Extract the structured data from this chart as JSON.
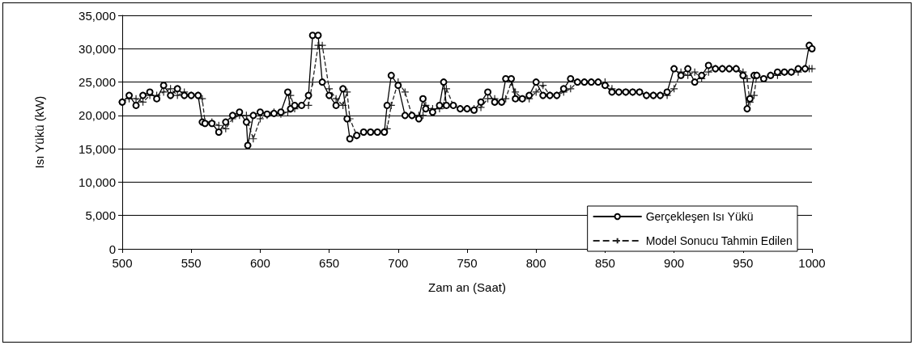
{
  "chart_data": {
    "type": "line",
    "xlabel": "Zam an (Saat)",
    "ylabel": "Isı Yükü (kW)",
    "x": [
      500,
      505,
      510,
      515,
      520,
      525,
      530,
      535,
      540,
      545,
      550,
      555,
      558,
      560,
      565,
      570,
      575,
      580,
      585,
      590,
      591,
      595,
      600,
      605,
      610,
      615,
      620,
      622,
      625,
      630,
      635,
      638,
      642,
      645,
      650,
      655,
      660,
      663,
      665,
      670,
      675,
      680,
      685,
      690,
      692,
      695,
      700,
      705,
      710,
      715,
      718,
      720,
      725,
      730,
      733,
      735,
      740,
      745,
      750,
      755,
      760,
      765,
      770,
      775,
      778,
      782,
      785,
      790,
      795,
      800,
      805,
      810,
      815,
      820,
      825,
      830,
      835,
      840,
      845,
      850,
      855,
      860,
      865,
      870,
      875,
      880,
      885,
      890,
      895,
      900,
      905,
      910,
      915,
      920,
      925,
      930,
      935,
      940,
      945,
      950,
      953,
      955,
      958,
      960,
      965,
      970,
      975,
      980,
      985,
      990,
      995,
      998,
      1000
    ],
    "series": [
      {
        "name": "Gerçekleşen Isı Yükü",
        "color": "#000000",
        "marker": "circle",
        "line_style": "solid",
        "values": [
          22000,
          23000,
          21500,
          23000,
          23500,
          22500,
          24500,
          23000,
          24000,
          23000,
          23000,
          23000,
          19000,
          18800,
          18800,
          17500,
          19000,
          20000,
          20500,
          19000,
          15500,
          20000,
          20500,
          20200,
          20300,
          20500,
          23500,
          21000,
          21500,
          21500,
          23000,
          32000,
          32000,
          25000,
          23000,
          21500,
          24000,
          19500,
          16500,
          17000,
          17500,
          17500,
          17500,
          17500,
          21500,
          26000,
          24500,
          20000,
          20000,
          19500,
          22500,
          21000,
          20500,
          21500,
          25000,
          21500,
          21500,
          21000,
          21000,
          20800,
          22000,
          23500,
          22000,
          22000,
          25500,
          25500,
          22500,
          22500,
          23000,
          25000,
          23000,
          23000,
          23000,
          24000,
          25500,
          25000,
          25000,
          25000,
          25000,
          24500,
          23500,
          23500,
          23500,
          23500,
          23500,
          23000,
          23000,
          23000,
          23500,
          27000,
          26000,
          27000,
          25000,
          26000,
          27500,
          27000,
          27000,
          27000,
          27000,
          26000,
          21000,
          22500,
          26000,
          26000,
          25500,
          26000,
          26500,
          26500,
          26500,
          27000,
          27000,
          30500,
          30000
        ]
      },
      {
        "name": "Model Sonucu Tahmin Edilen",
        "color": "#222222",
        "marker": "cross",
        "line_style": "dashed",
        "values": [
          22000,
          22500,
          22500,
          22000,
          23000,
          23000,
          23500,
          24000,
          23000,
          23500,
          23000,
          23000,
          22500,
          19000,
          19000,
          18500,
          18000,
          19500,
          20000,
          20000,
          19000,
          16500,
          19500,
          20000,
          20500,
          20200,
          20500,
          23000,
          21000,
          21500,
          21500,
          25000,
          30500,
          30500,
          24000,
          22500,
          21500,
          23500,
          19500,
          17000,
          17500,
          17500,
          17500,
          17500,
          18000,
          21500,
          25000,
          23500,
          20000,
          20000,
          20000,
          21500,
          21000,
          21000,
          21500,
          24000,
          21500,
          21000,
          21000,
          21000,
          21200,
          22500,
          22500,
          22000,
          22500,
          25000,
          23500,
          22500,
          22500,
          23500,
          24500,
          23000,
          23000,
          23500,
          24000,
          25000,
          25000,
          25000,
          25000,
          25000,
          24000,
          23500,
          23500,
          23500,
          23500,
          23000,
          23000,
          23000,
          23000,
          24000,
          26500,
          26000,
          26500,
          25500,
          26500,
          27000,
          27000,
          27000,
          27000,
          26500,
          25500,
          22000,
          23000,
          26000,
          25500,
          26000,
          26000,
          26500,
          26500,
          26500,
          27000,
          27000,
          27000
        ]
      }
    ],
    "xlim": [
      500,
      1000
    ],
    "xticks": [
      500,
      550,
      600,
      650,
      700,
      750,
      800,
      850,
      900,
      950,
      1000
    ],
    "ylim": [
      0,
      35000
    ],
    "yticks": [
      {
        "value": 0,
        "label": "0"
      },
      {
        "value": 5000,
        "label": "5,000"
      },
      {
        "value": 10000,
        "label": "10,000"
      },
      {
        "value": 15000,
        "label": "15,000"
      },
      {
        "value": 20000,
        "label": "20,000"
      },
      {
        "value": 25000,
        "label": "25,000"
      },
      {
        "value": 30000,
        "label": "30,000"
      },
      {
        "value": 35000,
        "label": "35,000"
      }
    ],
    "grid": "y",
    "legend": "bottom right"
  }
}
